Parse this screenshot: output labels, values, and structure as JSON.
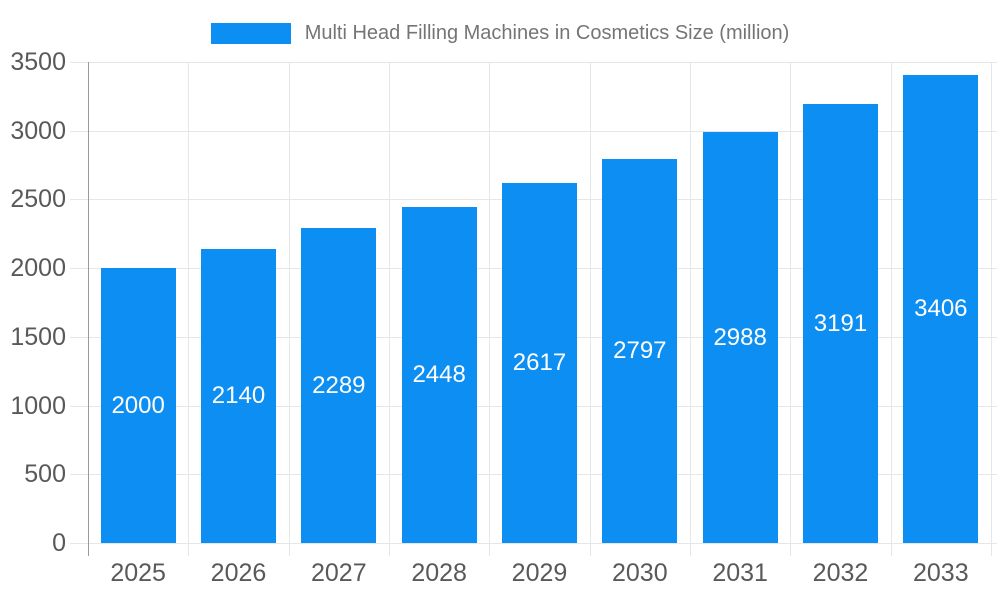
{
  "legend": {
    "label": "Multi Head Filling Machines in Cosmetics Size (million)",
    "swatch_color": "#0d8ef2"
  },
  "chart_data": {
    "type": "bar",
    "title": "Multi Head Filling Machines in Cosmetics Size (million)",
    "series": [
      {
        "name": "Multi Head Filling Machines in Cosmetics Size (million)",
        "values": [
          2000,
          2140,
          2289,
          2448,
          2617,
          2797,
          2988,
          3191,
          3406
        ]
      }
    ],
    "categories": [
      "2025",
      "2026",
      "2027",
      "2028",
      "2029",
      "2030",
      "2031",
      "2032",
      "2033"
    ],
    "values": [
      2000,
      2140,
      2289,
      2448,
      2617,
      2797,
      2988,
      3191,
      3406
    ],
    "value_labels": [
      "2000",
      "2140",
      "2289",
      "2448",
      "2617",
      "2797",
      "2988",
      "3191",
      "3406"
    ],
    "xlabel": "",
    "ylabel": "",
    "ylim": [
      0,
      3500
    ],
    "y_ticks": [
      0,
      500,
      1000,
      1500,
      2000,
      2500,
      3000,
      3500
    ],
    "grid": true,
    "legend_position": "top-center",
    "bar_color": "#0d8ef2",
    "value_label_color": "#ffffff",
    "axis_text_color": "#595959",
    "grid_color": "#e6e6e6",
    "axis_line_color": "#9b9b9b"
  }
}
